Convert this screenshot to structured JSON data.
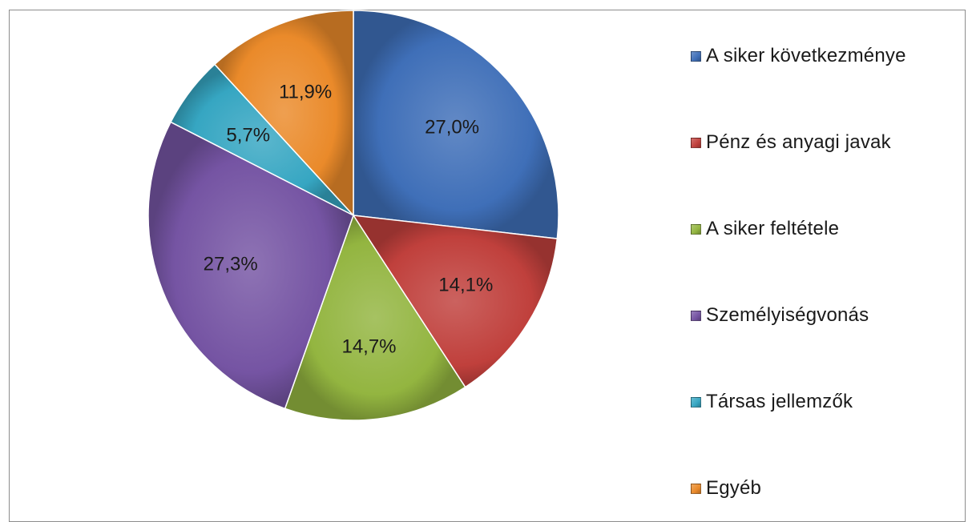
{
  "chart_data": {
    "type": "pie",
    "title": "",
    "start_angle_deg": 0,
    "direction": "clockwise",
    "slices": [
      {
        "label": "A siker következménye",
        "value": 27.0,
        "display": "27,0%",
        "color": "#3f6fb8"
      },
      {
        "label": "Pénz és anyagi javak",
        "value": 14.1,
        "display": "14,1%",
        "color": "#c0403c"
      },
      {
        "label": "A siker feltétele",
        "value": 14.7,
        "display": "14,7%",
        "color": "#93b540"
      },
      {
        "label": "Személyiségvonás",
        "value": 27.3,
        "display": "27,3%",
        "color": "#7554a3"
      },
      {
        "label": "Társas jellemzők",
        "value": 5.7,
        "display": "5,7%",
        "color": "#36a6c2"
      },
      {
        "label": "Egyéb",
        "value": 11.9,
        "display": "11,9%",
        "color": "#ea8a2a"
      }
    ],
    "legend": {
      "position": "right"
    }
  }
}
